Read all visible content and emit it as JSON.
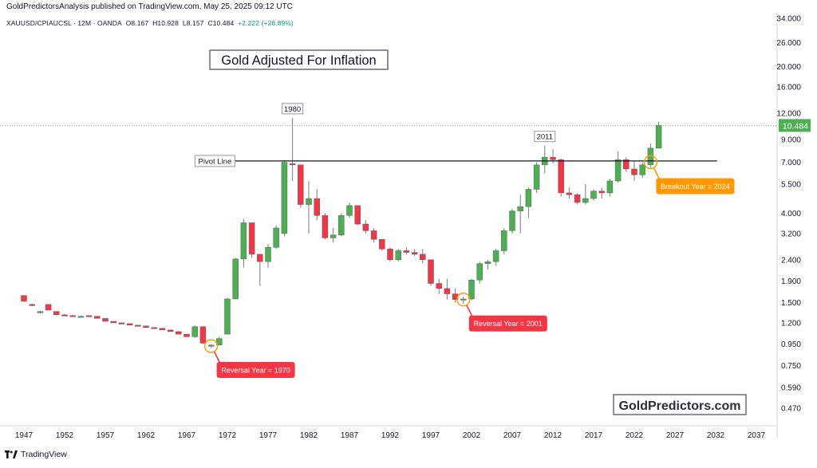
{
  "header": {
    "published_by": "GoldPredictorsAnalysis published on TradingView.com, May 25, 2025 09:12 UTC",
    "symbol": "XAUUSD/CPIAUCSL · 12M · OANDA",
    "open": "O8.167",
    "high": "H10.928",
    "low": "L8.157",
    "close": "C10.484",
    "change": "+2.222 (+26.89%)"
  },
  "footer": {
    "brand": "TradingView"
  },
  "colors": {
    "up": "#4caf50",
    "down": "#f23645",
    "axis_text": "#131722",
    "price_tag": "#4caf50",
    "reversal_callout": "#f23645",
    "breakout_callout": "#ff9800",
    "circle": "#ff9800"
  },
  "chart_data": {
    "type": "candlestick",
    "title": "Gold Adjusted For Inflation",
    "watermark": "GoldPredictors.com",
    "y_scale": "log",
    "y_ticks": [
      "34.000",
      "26.000",
      "20.000",
      "16.000",
      "12.000",
      "9.000",
      "7.000",
      "5.500",
      "4.000",
      "3.200",
      "2.400",
      "1.900",
      "1.500",
      "1.200",
      "0.950",
      "0.750",
      "0.590",
      "0.470"
    ],
    "x_ticks": [
      "1947",
      "1952",
      "1957",
      "1962",
      "1967",
      "1972",
      "1977",
      "1982",
      "1987",
      "1992",
      "1997",
      "2002",
      "2007",
      "2012",
      "2017",
      "2022",
      "2027",
      "2032",
      "2037"
    ],
    "last_price": "10.484",
    "candles": [
      {
        "year": 1947,
        "o": 1.62,
        "h": 1.62,
        "l": 1.52,
        "c": 1.52
      },
      {
        "year": 1948,
        "o": 1.47,
        "h": 1.48,
        "l": 1.44,
        "c": 1.45
      },
      {
        "year": 1949,
        "o": 1.34,
        "h": 1.37,
        "l": 1.33,
        "c": 1.36
      },
      {
        "year": 1950,
        "o": 1.47,
        "h": 1.47,
        "l": 1.38,
        "c": 1.38
      },
      {
        "year": 1951,
        "o": 1.36,
        "h": 1.36,
        "l": 1.31,
        "c": 1.31
      },
      {
        "year": 1952,
        "o": 1.31,
        "h": 1.32,
        "l": 1.3,
        "c": 1.3
      },
      {
        "year": 1953,
        "o": 1.3,
        "h": 1.31,
        "l": 1.29,
        "c": 1.29
      },
      {
        "year": 1954,
        "o": 1.29,
        "h": 1.3,
        "l": 1.29,
        "c": 1.29
      },
      {
        "year": 1955,
        "o": 1.3,
        "h": 1.3,
        "l": 1.29,
        "c": 1.29
      },
      {
        "year": 1956,
        "o": 1.29,
        "h": 1.29,
        "l": 1.26,
        "c": 1.26
      },
      {
        "year": 1957,
        "o": 1.26,
        "h": 1.26,
        "l": 1.22,
        "c": 1.22
      },
      {
        "year": 1958,
        "o": 1.22,
        "h": 1.22,
        "l": 1.2,
        "c": 1.2
      },
      {
        "year": 1959,
        "o": 1.2,
        "h": 1.2,
        "l": 1.19,
        "c": 1.19
      },
      {
        "year": 1960,
        "o": 1.19,
        "h": 1.19,
        "l": 1.17,
        "c": 1.17
      },
      {
        "year": 1961,
        "o": 1.17,
        "h": 1.17,
        "l": 1.16,
        "c": 1.16
      },
      {
        "year": 1962,
        "o": 1.16,
        "h": 1.16,
        "l": 1.14,
        "c": 1.14
      },
      {
        "year": 1963,
        "o": 1.14,
        "h": 1.14,
        "l": 1.13,
        "c": 1.13
      },
      {
        "year": 1964,
        "o": 1.13,
        "h": 1.13,
        "l": 1.11,
        "c": 1.11
      },
      {
        "year": 1965,
        "o": 1.11,
        "h": 1.11,
        "l": 1.09,
        "c": 1.09
      },
      {
        "year": 1966,
        "o": 1.09,
        "h": 1.09,
        "l": 1.06,
        "c": 1.06
      },
      {
        "year": 1967,
        "o": 1.06,
        "h": 1.06,
        "l": 1.03,
        "c": 1.03
      },
      {
        "year": 1968,
        "o": 1.03,
        "h": 1.17,
        "l": 1.02,
        "c": 1.15
      },
      {
        "year": 1969,
        "o": 1.15,
        "h": 1.16,
        "l": 0.95,
        "c": 0.96
      },
      {
        "year": 1970,
        "o": 0.93,
        "h": 0.95,
        "l": 0.91,
        "c": 0.94
      },
      {
        "year": 1971,
        "o": 0.94,
        "h": 1.03,
        "l": 0.94,
        "c": 1.01
      },
      {
        "year": 1972,
        "o": 1.06,
        "h": 1.58,
        "l": 1.06,
        "c": 1.56
      },
      {
        "year": 1973,
        "o": 1.56,
        "h": 2.45,
        "l": 1.56,
        "c": 2.42
      },
      {
        "year": 1974,
        "o": 2.42,
        "h": 3.75,
        "l": 2.2,
        "c": 3.6
      },
      {
        "year": 1975,
        "o": 3.6,
        "h": 3.6,
        "l": 2.45,
        "c": 2.55
      },
      {
        "year": 1976,
        "o": 2.55,
        "h": 2.55,
        "l": 1.8,
        "c": 2.35
      },
      {
        "year": 1977,
        "o": 2.35,
        "h": 2.85,
        "l": 2.2,
        "c": 2.75
      },
      {
        "year": 1978,
        "o": 2.75,
        "h": 3.5,
        "l": 2.7,
        "c": 3.4
      },
      {
        "year": 1979,
        "o": 3.2,
        "h": 7.15,
        "l": 3.1,
        "c": 7.0
      },
      {
        "year": 1980,
        "o": 6.9,
        "h": 11.4,
        "l": 5.7,
        "c": 6.8
      },
      {
        "year": 1981,
        "o": 6.8,
        "h": 6.8,
        "l": 4.25,
        "c": 4.4
      },
      {
        "year": 1982,
        "o": 4.4,
        "h": 5.7,
        "l": 3.2,
        "c": 4.7
      },
      {
        "year": 1983,
        "o": 4.7,
        "h": 5.2,
        "l": 3.7,
        "c": 3.9
      },
      {
        "year": 1984,
        "o": 3.9,
        "h": 4.0,
        "l": 3.0,
        "c": 3.05
      },
      {
        "year": 1985,
        "o": 3.05,
        "h": 3.4,
        "l": 2.9,
        "c": 3.15
      },
      {
        "year": 1986,
        "o": 3.15,
        "h": 4.0,
        "l": 3.1,
        "c": 3.9
      },
      {
        "year": 1987,
        "o": 3.9,
        "h": 4.5,
        "l": 3.8,
        "c": 4.35
      },
      {
        "year": 1988,
        "o": 4.35,
        "h": 4.35,
        "l": 3.5,
        "c": 3.55
      },
      {
        "year": 1989,
        "o": 3.55,
        "h": 3.7,
        "l": 3.2,
        "c": 3.3
      },
      {
        "year": 1990,
        "o": 3.3,
        "h": 3.4,
        "l": 2.9,
        "c": 3.0
      },
      {
        "year": 1991,
        "o": 3.0,
        "h": 3.0,
        "l": 2.65,
        "c": 2.7
      },
      {
        "year": 1992,
        "o": 2.7,
        "h": 2.75,
        "l": 2.35,
        "c": 2.4
      },
      {
        "year": 1993,
        "o": 2.4,
        "h": 2.7,
        "l": 2.35,
        "c": 2.65
      },
      {
        "year": 1994,
        "o": 2.65,
        "h": 2.75,
        "l": 2.55,
        "c": 2.6
      },
      {
        "year": 1995,
        "o": 2.6,
        "h": 2.7,
        "l": 2.5,
        "c": 2.55
      },
      {
        "year": 1996,
        "o": 2.55,
        "h": 2.7,
        "l": 2.3,
        "c": 2.4
      },
      {
        "year": 1997,
        "o": 2.4,
        "h": 2.4,
        "l": 1.8,
        "c": 1.85
      },
      {
        "year": 1998,
        "o": 1.85,
        "h": 1.95,
        "l": 1.65,
        "c": 1.75
      },
      {
        "year": 1999,
        "o": 1.75,
        "h": 1.95,
        "l": 1.55,
        "c": 1.65
      },
      {
        "year": 2000,
        "o": 1.65,
        "h": 1.75,
        "l": 1.5,
        "c": 1.55
      },
      {
        "year": 2001,
        "o": 1.55,
        "h": 1.6,
        "l": 1.48,
        "c": 1.56
      },
      {
        "year": 2002,
        "o": 1.56,
        "h": 1.95,
        "l": 1.54,
        "c": 1.92
      },
      {
        "year": 2003,
        "o": 1.92,
        "h": 2.35,
        "l": 1.85,
        "c": 2.3
      },
      {
        "year": 2004,
        "o": 2.3,
        "h": 2.4,
        "l": 2.15,
        "c": 2.35
      },
      {
        "year": 2005,
        "o": 2.35,
        "h": 2.7,
        "l": 2.25,
        "c": 2.65
      },
      {
        "year": 2006,
        "o": 2.65,
        "h": 3.4,
        "l": 2.55,
        "c": 3.3
      },
      {
        "year": 2007,
        "o": 3.3,
        "h": 4.2,
        "l": 3.2,
        "c": 4.1
      },
      {
        "year": 2008,
        "o": 4.1,
        "h": 4.9,
        "l": 3.2,
        "c": 4.3
      },
      {
        "year": 2009,
        "o": 4.3,
        "h": 5.3,
        "l": 3.8,
        "c": 5.2
      },
      {
        "year": 2010,
        "o": 5.2,
        "h": 7.0,
        "l": 5.0,
        "c": 6.8
      },
      {
        "year": 2011,
        "o": 6.8,
        "h": 8.4,
        "l": 6.2,
        "c": 7.4
      },
      {
        "year": 2012,
        "o": 7.4,
        "h": 8.1,
        "l": 6.9,
        "c": 7.2
      },
      {
        "year": 2013,
        "o": 7.2,
        "h": 7.3,
        "l": 4.8,
        "c": 5.0
      },
      {
        "year": 2014,
        "o": 5.0,
        "h": 5.3,
        "l": 4.7,
        "c": 4.9
      },
      {
        "year": 2015,
        "o": 4.9,
        "h": 5.0,
        "l": 4.4,
        "c": 4.5
      },
      {
        "year": 2016,
        "o": 4.5,
        "h": 5.5,
        "l": 4.4,
        "c": 4.7
      },
      {
        "year": 2017,
        "o": 4.7,
        "h": 5.2,
        "l": 4.6,
        "c": 5.1
      },
      {
        "year": 2018,
        "o": 5.1,
        "h": 5.3,
        "l": 4.7,
        "c": 5.0
      },
      {
        "year": 2019,
        "o": 5.0,
        "h": 5.8,
        "l": 4.8,
        "c": 5.7
      },
      {
        "year": 2020,
        "o": 5.7,
        "h": 7.9,
        "l": 5.6,
        "c": 7.2
      },
      {
        "year": 2021,
        "o": 7.2,
        "h": 7.4,
        "l": 6.3,
        "c": 6.5
      },
      {
        "year": 2022,
        "o": 6.5,
        "h": 7.1,
        "l": 5.7,
        "c": 6.1
      },
      {
        "year": 2023,
        "o": 6.1,
        "h": 7.0,
        "l": 5.9,
        "c": 6.8
      },
      {
        "year": 2024,
        "o": 6.8,
        "h": 8.6,
        "l": 6.6,
        "c": 8.17
      },
      {
        "year": 2025,
        "o": 8.167,
        "h": 10.928,
        "l": 8.157,
        "c": 10.484
      }
    ],
    "pivot_line": {
      "label": "Pivot Line",
      "value": 7.1,
      "from_year": 1979,
      "to_year": 2025.5
    },
    "markers": [
      {
        "label": "1980",
        "year": 1980,
        "value": 11.4
      },
      {
        "label": "2011",
        "year": 2011,
        "value": 8.4
      }
    ],
    "callouts": [
      {
        "text": "Reversal Year = 1970",
        "year": 1970,
        "value": 0.93,
        "style": "reversal"
      },
      {
        "text": "Reversal Year = 2001",
        "year": 2001,
        "value": 1.55,
        "style": "reversal"
      },
      {
        "text": "Breakout Year = 2024",
        "year": 2024,
        "value": 7.0,
        "style": "breakout"
      }
    ]
  }
}
